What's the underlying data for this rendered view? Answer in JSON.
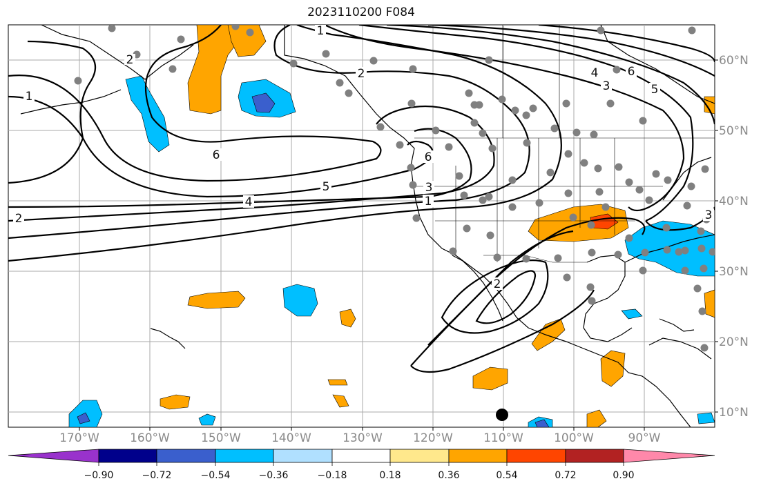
{
  "title": "2023110200 F084",
  "map": {
    "lon_labels": [
      "170°W",
      "160°W",
      "150°W",
      "140°W",
      "130°W",
      "120°W",
      "110°W",
      "100°W",
      "90°W"
    ],
    "lat_labels": [
      "60°N",
      "50°N",
      "40°N",
      "30°N",
      "20°N",
      "10°N"
    ],
    "contour_labels": [
      "1",
      "2",
      "6",
      "5",
      "4",
      "3",
      "6",
      "4",
      "3",
      "5",
      "6",
      "2",
      "1",
      "2",
      "3",
      "1",
      "2"
    ]
  },
  "colorbar": {
    "ticks": [
      "−0.90",
      "−0.72",
      "−0.54",
      "−0.36",
      "−0.18",
      "0.18",
      "0.36",
      "0.54",
      "0.72",
      "0.90"
    ],
    "colors": [
      "#9932cc",
      "#00008b",
      "#3a5fcd",
      "#00bfff",
      "#b0e0ff",
      "#ffffff",
      "#ffe88c",
      "#ffa500",
      "#ff4500",
      "#b22222",
      "#ff88aa"
    ]
  }
}
